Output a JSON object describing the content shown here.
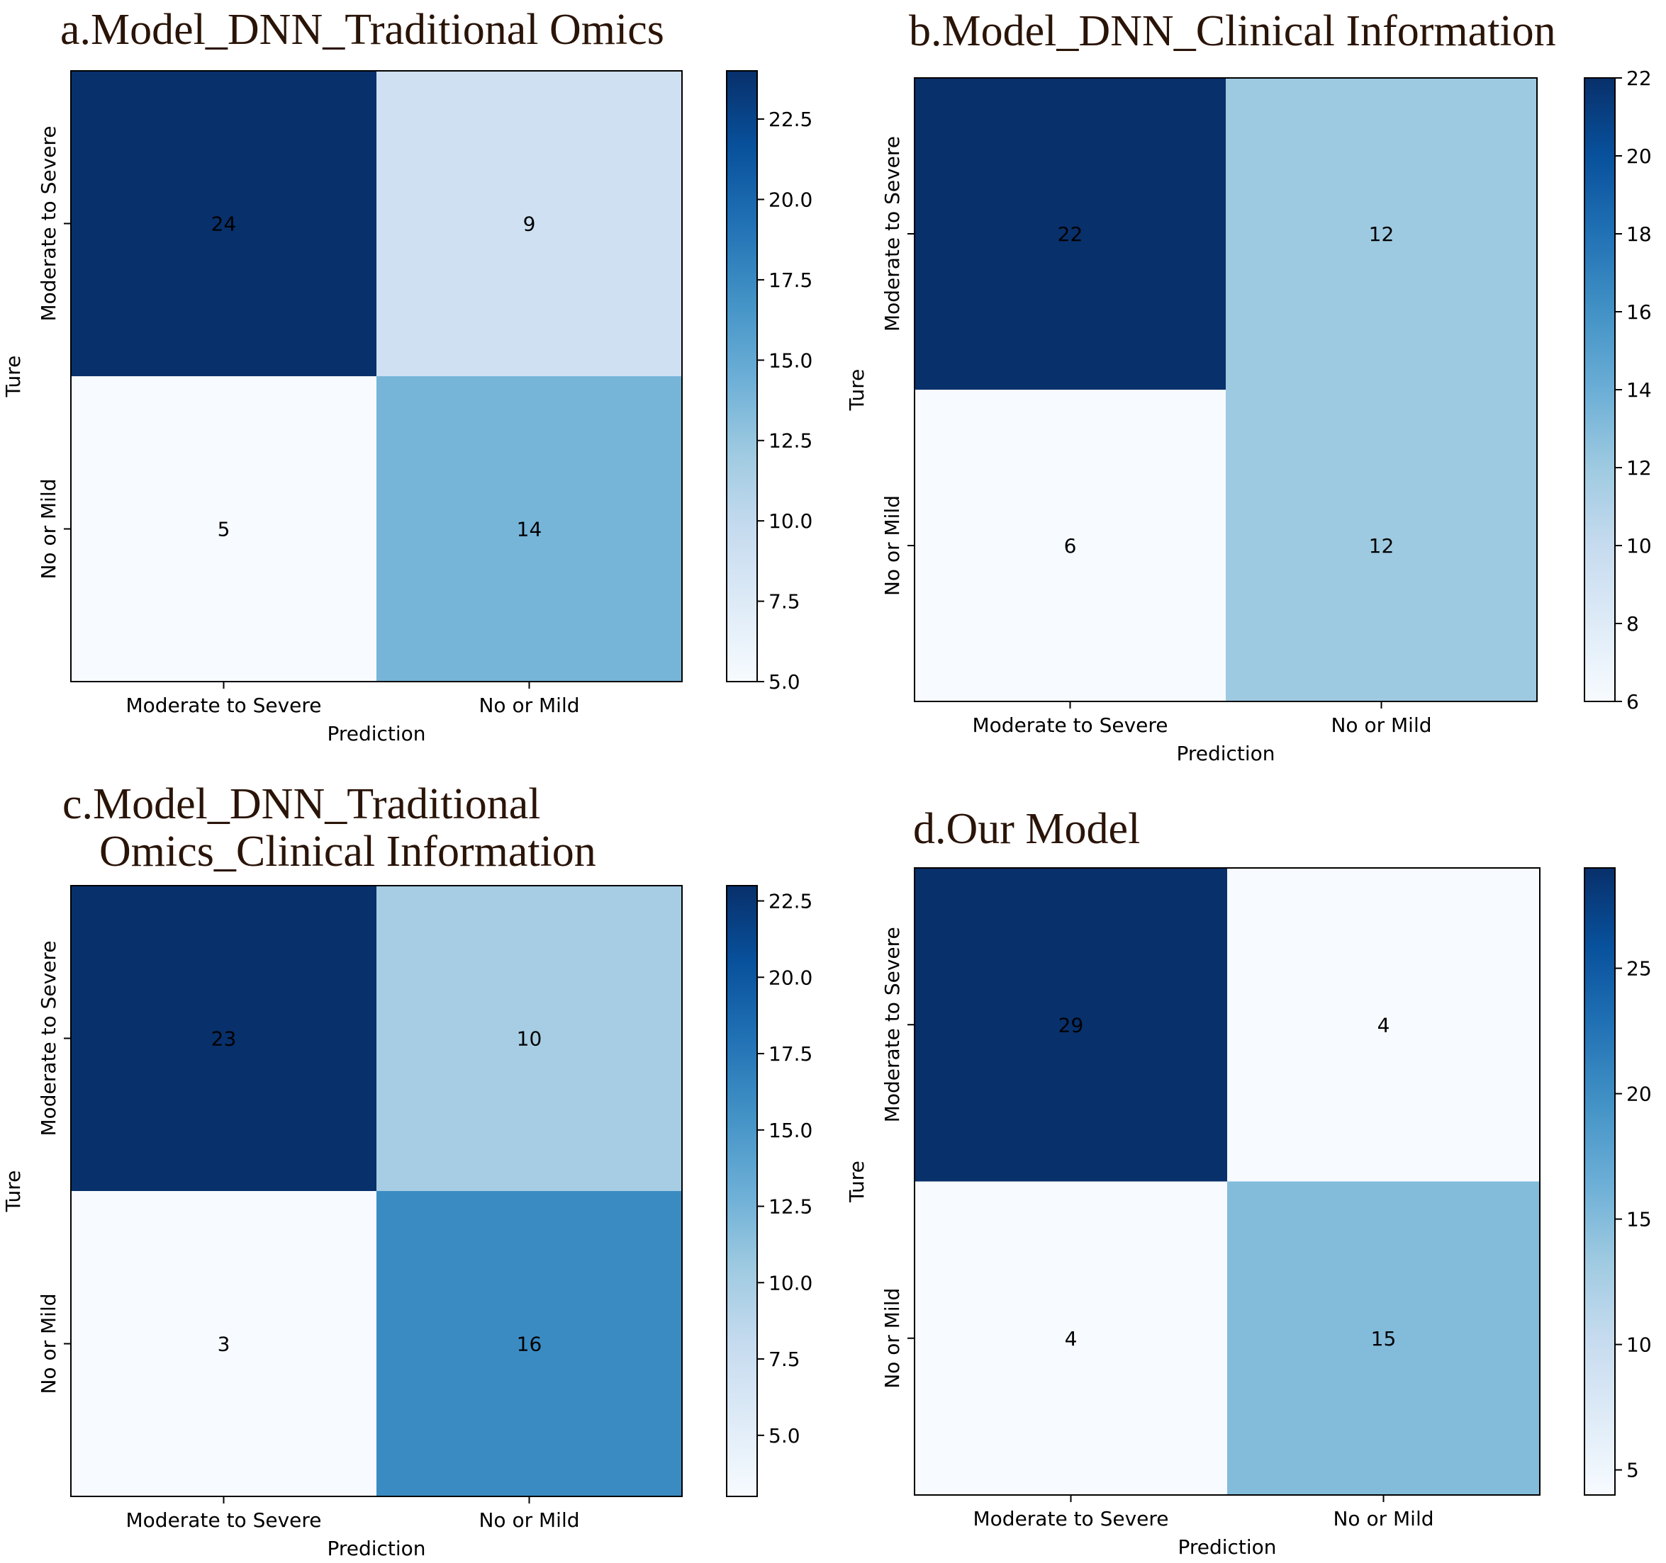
{
  "chart_data": [
    {
      "type": "heatmap",
      "title_lines": [
        "a.Model_DNN_Traditional Omics"
      ],
      "xlabel": "Prediction",
      "ylabel": "Ture",
      "x_categories": [
        "Moderate to Severe",
        "No or Mild"
      ],
      "y_categories": [
        "Moderate to Severe",
        "No or Mild"
      ],
      "matrix": [
        [
          24,
          9
        ],
        [
          5,
          14
        ]
      ],
      "colorbar": {
        "min": 5,
        "max": 24,
        "ticks": [
          "5.0",
          "7.5",
          "10.0",
          "12.5",
          "15.0",
          "17.5",
          "20.0",
          "22.5"
        ]
      }
    },
    {
      "type": "heatmap",
      "title_lines": [
        "b.Model_DNN_Clinical Information"
      ],
      "xlabel": "Prediction",
      "ylabel": "Ture",
      "x_categories": [
        "Moderate to Severe",
        "No or Mild"
      ],
      "y_categories": [
        "Moderate to Severe",
        "No or Mild"
      ],
      "matrix": [
        [
          22,
          12
        ],
        [
          6,
          12
        ]
      ],
      "colorbar": {
        "min": 6,
        "max": 22,
        "ticks": [
          "6",
          "8",
          "10",
          "12",
          "14",
          "16",
          "18",
          "20",
          "22"
        ]
      }
    },
    {
      "type": "heatmap",
      "title_lines": [
        "c.Model_DNN_Traditional",
        "Omics_Clinical Information"
      ],
      "xlabel": "Prediction",
      "ylabel": "Ture",
      "x_categories": [
        "Moderate to Severe",
        "No or Mild"
      ],
      "y_categories": [
        "Moderate to Severe",
        "No or Mild"
      ],
      "matrix": [
        [
          23,
          10
        ],
        [
          3,
          16
        ]
      ],
      "colorbar": {
        "min": 3,
        "max": 23,
        "ticks": [
          "5.0",
          "7.5",
          "10.0",
          "12.5",
          "15.0",
          "17.5",
          "20.0",
          "22.5"
        ]
      }
    },
    {
      "type": "heatmap",
      "title_lines": [
        "d.Our Model"
      ],
      "xlabel": "Prediction",
      "ylabel": "Ture",
      "x_categories": [
        "Moderate to Severe",
        "No or Mild"
      ],
      "y_categories": [
        "Moderate to Severe",
        "No or Mild"
      ],
      "matrix": [
        [
          29,
          4
        ],
        [
          4,
          15
        ]
      ],
      "colorbar": {
        "min": 4,
        "max": 29,
        "ticks": [
          "5",
          "10",
          "15",
          "20",
          "25"
        ]
      }
    }
  ]
}
